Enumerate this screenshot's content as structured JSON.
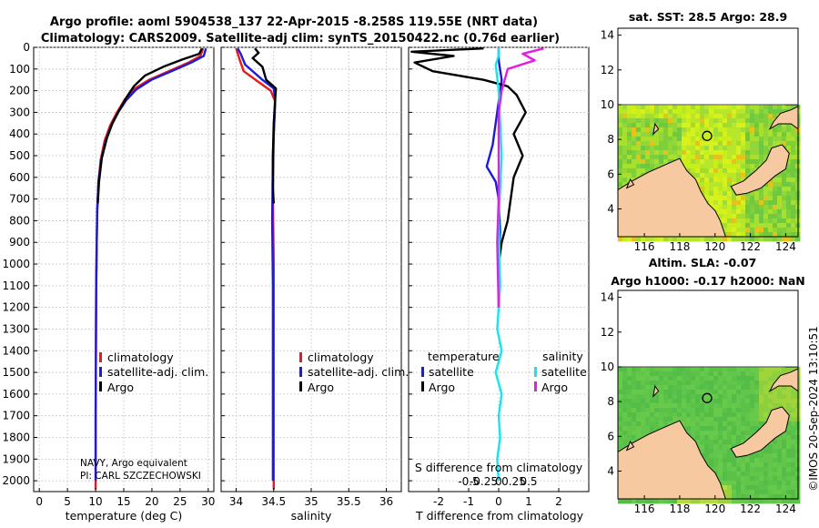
{
  "figure": {
    "title_line1": "Argo profile: aoml 5904538_137 22-Apr-2015 -8.258S 119.55E (NRT data)",
    "title_line2": "Climatology: CARS2009. Satellite-adj clim: synTS_20150422.nc (0.76d earlier)",
    "timestamp": "©IMOS 20-Sep-2024 13:10:51",
    "colors": {
      "climatology": "#e8191b",
      "satellite": "#1b1bdc",
      "argo": "#000000",
      "sal_sat": "#10e8f0",
      "sal_argo": "#e31ee0",
      "land": "#f7c9a0"
    }
  },
  "chart_data": [
    {
      "id": "temperature",
      "type": "line",
      "xlabel": "temperature (deg C)",
      "ylabel": "",
      "xlim": [
        -1,
        31
      ],
      "ylim": [
        2050,
        0
      ],
      "x_ticks": [
        "0",
        "5",
        "10",
        "15",
        "20",
        "25",
        "30"
      ],
      "x_tick_values": [
        0,
        5,
        10,
        15,
        20,
        25,
        30
      ],
      "y_ticks": [
        "0",
        "100",
        "200",
        "300",
        "400",
        "500",
        "600",
        "700",
        "800",
        "900",
        "1000",
        "1100",
        "1200",
        "1300",
        "1400",
        "1500",
        "1600",
        "1700",
        "1800",
        "1900",
        "2000"
      ],
      "y_tick_values": [
        0,
        100,
        200,
        300,
        400,
        500,
        600,
        700,
        800,
        900,
        1000,
        1100,
        1200,
        1300,
        1400,
        1500,
        1600,
        1700,
        1800,
        1900,
        2000
      ],
      "legend": [
        "climatology",
        "satellite-adj. clim.",
        "Argo"
      ],
      "annotation_line1": "NAVY, Argo equivalent",
      "annotation_line2": "PI: CARL SZCZECHOWSKI",
      "series": [
        {
          "name": "climatology",
          "color": "#e8191b",
          "points": [
            [
              29.1,
              5
            ],
            [
              28.6,
              40
            ],
            [
              26.5,
              70
            ],
            [
              23.0,
              110
            ],
            [
              19.5,
              150
            ],
            [
              17.0,
              190
            ],
            [
              15.2,
              240
            ],
            [
              13.8,
              300
            ],
            [
              12.6,
              360
            ],
            [
              11.6,
              430
            ],
            [
              10.9,
              520
            ],
            [
              10.5,
              620
            ],
            [
              10.3,
              750
            ],
            [
              10.2,
              900
            ],
            [
              10.1,
              1100
            ],
            [
              10.05,
              1400
            ],
            [
              10.0,
              1700
            ],
            [
              10.0,
              2040
            ]
          ]
        },
        {
          "name": "satellite-adj. clim.",
          "color": "#1b1bdc",
          "points": [
            [
              29.6,
              5
            ],
            [
              29.2,
              40
            ],
            [
              27.0,
              70
            ],
            [
              23.5,
              110
            ],
            [
              19.9,
              150
            ],
            [
              17.2,
              195
            ],
            [
              15.4,
              245
            ],
            [
              14.0,
              300
            ],
            [
              12.8,
              360
            ],
            [
              11.8,
              430
            ],
            [
              11.0,
              520
            ],
            [
              10.5,
              620
            ],
            [
              10.3,
              750
            ],
            [
              10.2,
              900
            ],
            [
              10.1,
              1100
            ],
            [
              10.05,
              1400
            ],
            [
              10.0,
              1700
            ],
            [
              10.0,
              2000
            ]
          ]
        },
        {
          "name": "Argo",
          "color": "#000000",
          "points": [
            [
              28.9,
              5
            ],
            [
              28.4,
              30
            ],
            [
              25.5,
              55
            ],
            [
              22.0,
              90
            ],
            [
              18.8,
              130
            ],
            [
              16.8,
              180
            ],
            [
              15.5,
              230
            ],
            [
              14.2,
              290
            ],
            [
              13.0,
              350
            ],
            [
              12.0,
              420
            ],
            [
              11.1,
              510
            ],
            [
              10.6,
              620
            ],
            [
              10.4,
              720
            ]
          ]
        }
      ]
    },
    {
      "id": "salinity",
      "type": "line",
      "xlabel": "salinity",
      "ylabel": "",
      "xlim": [
        33.8,
        36.2
      ],
      "ylim": [
        2050,
        0
      ],
      "x_ticks": [
        "34",
        "34.5",
        "35",
        "35.5",
        "36"
      ],
      "x_tick_values": [
        34,
        34.5,
        35,
        35.5,
        36
      ],
      "legend": [
        "climatology",
        "satellite-adj. clim.",
        "Argo"
      ],
      "series": [
        {
          "name": "climatology",
          "color": "#e8191b",
          "points": [
            [
              34.0,
              5
            ],
            [
              34.05,
              60
            ],
            [
              34.1,
              110
            ],
            [
              34.3,
              160
            ],
            [
              34.46,
              200
            ],
            [
              34.52,
              250
            ],
            [
              34.5,
              400
            ],
            [
              34.49,
              700
            ],
            [
              34.5,
              1000
            ],
            [
              34.5,
              1500
            ],
            [
              34.5,
              2040
            ]
          ]
        },
        {
          "name": "satellite-adj. clim.",
          "color": "#1b1bdc",
          "points": [
            [
              34.02,
              5
            ],
            [
              34.06,
              30
            ],
            [
              34.12,
              80
            ],
            [
              34.35,
              150
            ],
            [
              34.5,
              190
            ],
            [
              34.52,
              240
            ],
            [
              34.49,
              500
            ],
            [
              34.48,
              800
            ],
            [
              34.49,
              1100
            ],
            [
              34.49,
              1500
            ],
            [
              34.49,
              2000
            ]
          ]
        },
        {
          "name": "Argo",
          "color": "#000000",
          "points": [
            [
              34.25,
              5
            ],
            [
              34.3,
              25
            ],
            [
              34.22,
              50
            ],
            [
              34.35,
              90
            ],
            [
              34.4,
              150
            ],
            [
              34.53,
              190
            ],
            [
              34.52,
              240
            ],
            [
              34.5,
              350
            ],
            [
              34.49,
              500
            ],
            [
              34.49,
              650
            ],
            [
              34.5,
              720
            ]
          ]
        }
      ]
    },
    {
      "id": "difference",
      "type": "line",
      "xlabel": "T difference from climatology",
      "xlabel_top": "S difference from climatology",
      "xlim": [
        -3,
        3
      ],
      "ylim": [
        2050,
        0
      ],
      "x_ticks": [
        "-2",
        "-1",
        "0",
        "1",
        "2"
      ],
      "x_tick_values": [
        -2,
        -1,
        0,
        1,
        2
      ],
      "s_ticks": [
        "-0.5",
        "-0.25",
        "0",
        "0.25",
        "0.5"
      ],
      "s_tick_values": [
        -1,
        -0.5,
        0,
        0.5,
        1
      ],
      "legend_headers": [
        "temperature",
        "salinity"
      ],
      "legend_temperature": [
        "satellite",
        "Argo"
      ],
      "legend_salinity": [
        "satellite",
        "Argo"
      ],
      "series": [
        {
          "name": "T satellite",
          "color": "#1b1bdc",
          "points": [
            [
              0.0,
              5
            ],
            [
              0.0,
              60
            ],
            [
              0.1,
              150
            ],
            [
              0.0,
              250
            ],
            [
              -0.1,
              350
            ],
            [
              -0.2,
              450
            ],
            [
              -0.4,
              550
            ],
            [
              -0.1,
              620
            ],
            [
              0.0,
              700
            ],
            [
              0.05,
              850
            ],
            [
              0.0,
              1000
            ],
            [
              0.0,
              1200
            ]
          ]
        },
        {
          "name": "T Argo",
          "color": "#000000",
          "points": [
            [
              -0.5,
              5
            ],
            [
              -2.9,
              20
            ],
            [
              -1.5,
              40
            ],
            [
              -2.8,
              70
            ],
            [
              -2.2,
              110
            ],
            [
              -0.5,
              150
            ],
            [
              0.3,
              180
            ],
            [
              0.6,
              220
            ],
            [
              0.9,
              300
            ],
            [
              0.5,
              400
            ],
            [
              0.8,
              500
            ],
            [
              0.5,
              600
            ],
            [
              0.4,
              700
            ],
            [
              0.3,
              800
            ],
            [
              0.1,
              900
            ],
            [
              0.0,
              1000
            ]
          ]
        },
        {
          "name": "S satellite",
          "color": "#10e8f0",
          "points": [
            [
              0.0,
              5
            ],
            [
              0.0,
              40
            ],
            [
              -0.1,
              80
            ],
            [
              0.0,
              200
            ],
            [
              0.1,
              500
            ],
            [
              0.0,
              800
            ],
            [
              0.05,
              1100
            ],
            [
              -0.05,
              1300
            ],
            [
              0.1,
              1400
            ],
            [
              -0.1,
              1500
            ],
            [
              0.1,
              1600
            ],
            [
              0.0,
              1700
            ],
            [
              0.05,
              1800
            ],
            [
              -0.05,
              1900
            ],
            [
              0.0,
              2000
            ]
          ]
        },
        {
          "name": "S Argo",
          "color": "#e31ee0",
          "points": [
            [
              1.5,
              5
            ],
            [
              0.8,
              30
            ],
            [
              1.2,
              60
            ],
            [
              0.3,
              100
            ],
            [
              0.1,
              200
            ],
            [
              0.0,
              300
            ],
            [
              0.0,
              500
            ],
            [
              0.0,
              700
            ],
            [
              -0.05,
              900
            ],
            [
              0.0,
              1200
            ]
          ]
        }
      ]
    },
    {
      "id": "sst_map",
      "type": "heatmap",
      "title": "sat. SST: 28.5 Argo: 28.9",
      "xlim": [
        114.5,
        124.7
      ],
      "ylim": [
        2.4,
        14.4
      ],
      "x_ticks": [
        "116",
        "118",
        "120",
        "122",
        "124"
      ],
      "x_tick_values": [
        116,
        118,
        120,
        122,
        124
      ],
      "y_ticks": [
        "4",
        "6",
        "8",
        "10",
        "12",
        "14"
      ],
      "y_tick_values": [
        4,
        6,
        8,
        10,
        12,
        14
      ],
      "data_top": 10.0,
      "marker": [
        119.55,
        8.2
      ]
    },
    {
      "id": "sla_map",
      "type": "heatmap",
      "title_line1": "Altim. SLA: -0.07",
      "title_line2": "Argo h1000: -0.17 h2000: NaN",
      "xlim": [
        114.5,
        124.7
      ],
      "ylim": [
        2.4,
        14.4
      ],
      "x_ticks": [
        "116",
        "118",
        "120",
        "122",
        "124"
      ],
      "x_tick_values": [
        116,
        118,
        120,
        122,
        124
      ],
      "y_ticks": [
        "4",
        "6",
        "8",
        "10",
        "12",
        "14"
      ],
      "y_tick_values": [
        4,
        6,
        8,
        10,
        12,
        14
      ],
      "data_top": 10.0,
      "marker": [
        119.55,
        8.2
      ]
    }
  ]
}
